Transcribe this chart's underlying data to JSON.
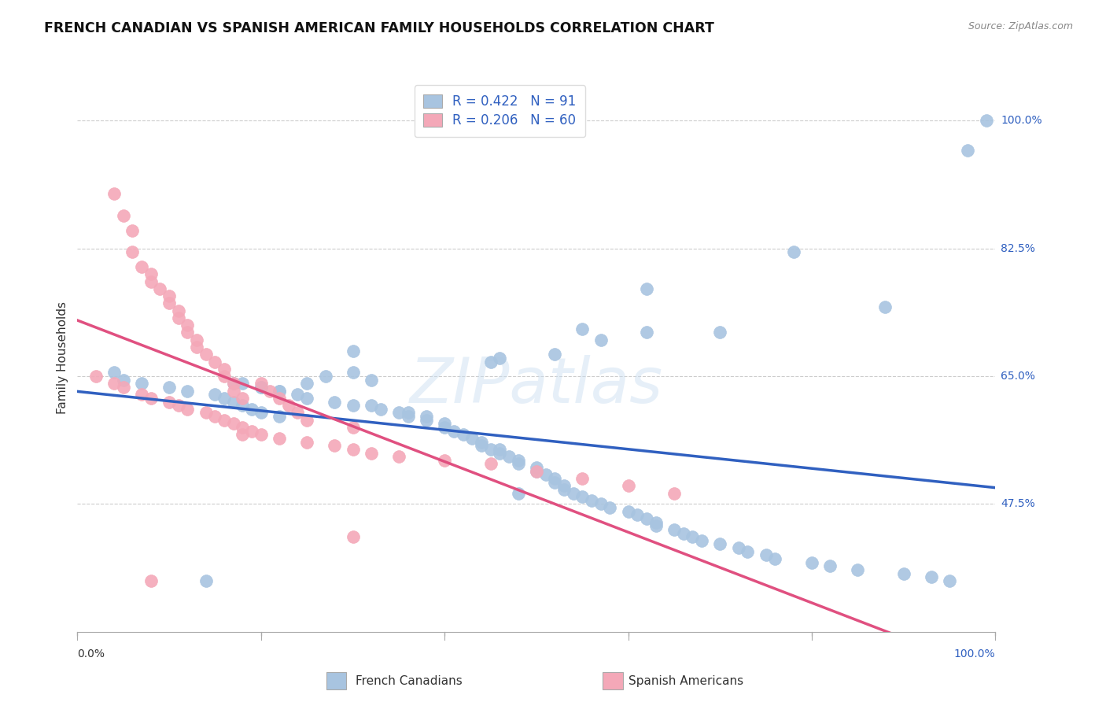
{
  "title": "FRENCH CANADIAN VS SPANISH AMERICAN FAMILY HOUSEHOLDS CORRELATION CHART",
  "source_text": "Source: ZipAtlas.com",
  "ylabel": "Family Households",
  "y_ticks": [
    0.475,
    0.65,
    0.825,
    1.0
  ],
  "y_tick_labels": [
    "47.5%",
    "65.0%",
    "82.5%",
    "100.0%"
  ],
  "x_range": [
    0.0,
    1.0
  ],
  "y_range": [
    0.3,
    1.05
  ],
  "blue_R": 0.422,
  "blue_N": 91,
  "pink_R": 0.206,
  "pink_N": 60,
  "blue_color": "#a8c4e0",
  "pink_color": "#f4a8b8",
  "blue_line_color": "#3060c0",
  "pink_line_color": "#e05080",
  "legend_label_blue": "French Canadians",
  "legend_label_pink": "Spanish Americans",
  "watermark_text": "ZIPatlas",
  "blue_x": [
    0.62,
    0.78,
    0.88,
    0.62,
    0.7,
    0.55,
    0.57,
    0.52,
    0.46,
    0.45,
    0.3,
    0.3,
    0.32,
    0.27,
    0.25,
    0.18,
    0.17,
    0.2,
    0.2,
    0.22,
    0.22,
    0.24,
    0.25,
    0.28,
    0.3,
    0.32,
    0.33,
    0.35,
    0.36,
    0.36,
    0.38,
    0.38,
    0.4,
    0.4,
    0.41,
    0.42,
    0.43,
    0.44,
    0.44,
    0.45,
    0.46,
    0.46,
    0.47,
    0.48,
    0.48,
    0.5,
    0.5,
    0.51,
    0.52,
    0.52,
    0.53,
    0.53,
    0.54,
    0.55,
    0.56,
    0.57,
    0.58,
    0.6,
    0.61,
    0.62,
    0.63,
    0.63,
    0.65,
    0.66,
    0.67,
    0.68,
    0.7,
    0.72,
    0.73,
    0.75,
    0.76,
    0.8,
    0.82,
    0.85,
    0.9,
    0.93,
    0.95,
    0.04,
    0.05,
    0.07,
    0.1,
    0.12,
    0.15,
    0.16,
    0.17,
    0.18,
    0.19,
    0.2,
    0.22,
    0.97,
    0.99,
    0.14,
    0.48
  ],
  "blue_y": [
    0.77,
    0.82,
    0.745,
    0.71,
    0.71,
    0.715,
    0.7,
    0.68,
    0.675,
    0.67,
    0.685,
    0.655,
    0.645,
    0.65,
    0.64,
    0.64,
    0.64,
    0.635,
    0.635,
    0.63,
    0.63,
    0.625,
    0.62,
    0.615,
    0.61,
    0.61,
    0.605,
    0.6,
    0.6,
    0.595,
    0.595,
    0.59,
    0.585,
    0.58,
    0.575,
    0.57,
    0.565,
    0.56,
    0.555,
    0.55,
    0.55,
    0.545,
    0.54,
    0.535,
    0.53,
    0.525,
    0.52,
    0.515,
    0.51,
    0.505,
    0.5,
    0.495,
    0.49,
    0.485,
    0.48,
    0.475,
    0.47,
    0.465,
    0.46,
    0.455,
    0.45,
    0.445,
    0.44,
    0.435,
    0.43,
    0.425,
    0.42,
    0.415,
    0.41,
    0.405,
    0.4,
    0.395,
    0.39,
    0.385,
    0.38,
    0.375,
    0.37,
    0.655,
    0.645,
    0.64,
    0.635,
    0.63,
    0.625,
    0.62,
    0.615,
    0.61,
    0.605,
    0.6,
    0.595,
    0.96,
    1.0,
    0.37,
    0.49
  ],
  "pink_x": [
    0.02,
    0.04,
    0.05,
    0.06,
    0.06,
    0.07,
    0.08,
    0.08,
    0.09,
    0.1,
    0.1,
    0.11,
    0.11,
    0.12,
    0.12,
    0.13,
    0.13,
    0.14,
    0.15,
    0.16,
    0.16,
    0.17,
    0.17,
    0.18,
    0.2,
    0.21,
    0.22,
    0.23,
    0.24,
    0.25,
    0.3,
    0.18,
    0.04,
    0.05,
    0.07,
    0.08,
    0.1,
    0.11,
    0.12,
    0.14,
    0.15,
    0.16,
    0.17,
    0.18,
    0.19,
    0.2,
    0.22,
    0.25,
    0.28,
    0.3,
    0.32,
    0.35,
    0.4,
    0.45,
    0.5,
    0.55,
    0.6,
    0.65,
    0.3,
    0.08
  ],
  "pink_y": [
    0.65,
    0.9,
    0.87,
    0.85,
    0.82,
    0.8,
    0.79,
    0.78,
    0.77,
    0.76,
    0.75,
    0.74,
    0.73,
    0.72,
    0.71,
    0.7,
    0.69,
    0.68,
    0.67,
    0.66,
    0.65,
    0.64,
    0.63,
    0.62,
    0.64,
    0.63,
    0.62,
    0.61,
    0.6,
    0.59,
    0.58,
    0.57,
    0.64,
    0.635,
    0.625,
    0.62,
    0.615,
    0.61,
    0.605,
    0.6,
    0.595,
    0.59,
    0.585,
    0.58,
    0.575,
    0.57,
    0.565,
    0.56,
    0.555,
    0.55,
    0.545,
    0.54,
    0.535,
    0.53,
    0.52,
    0.51,
    0.5,
    0.49,
    0.43,
    0.37
  ]
}
